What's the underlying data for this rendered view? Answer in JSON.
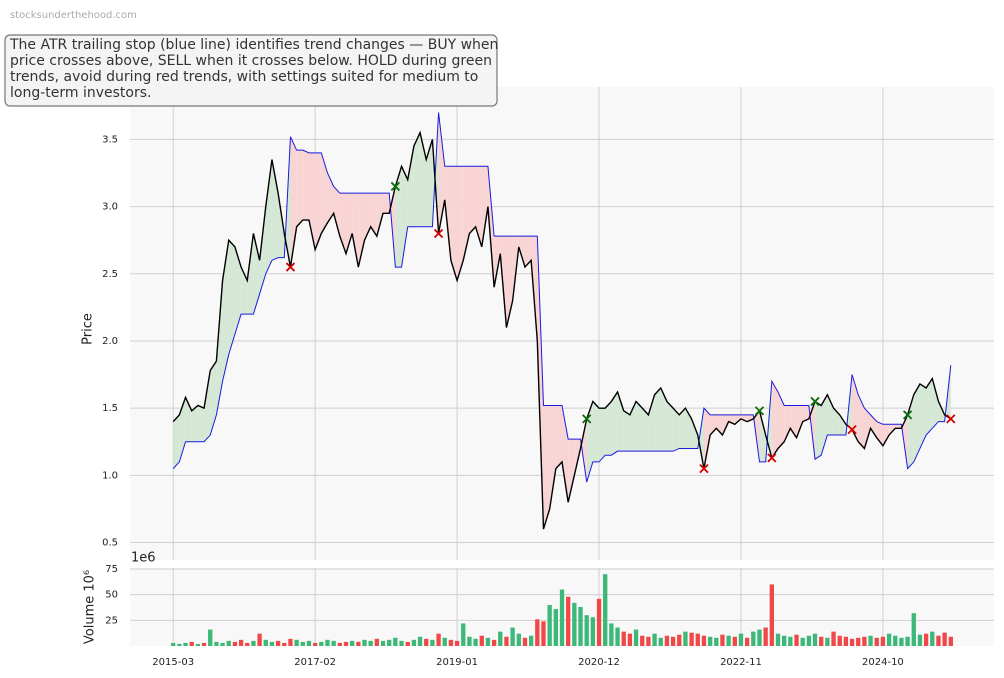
{
  "watermark": "stocksunderthehood.com",
  "annotation_lines": [
    "The ATR trailing stop (blue line) identifies trend changes — BUY when",
    "price crosses above, SELL when it crosses below. HOLD during green",
    "trends, avoid during red trends, with settings suited for medium to",
    "long-term investors."
  ],
  "chart_data": [
    {
      "type": "line",
      "ylabel": "Price",
      "x": [
        "2015-03",
        "2015-04",
        "2015-05",
        "2015-06",
        "2015-07",
        "2015-08",
        "2015-09",
        "2015-10",
        "2015-11",
        "2015-12",
        "2016-01",
        "2016-02",
        "2016-03",
        "2016-04",
        "2016-05",
        "2016-06",
        "2016-07",
        "2016-08",
        "2016-09",
        "2016-10",
        "2016-11",
        "2016-12",
        "2017-01",
        "2017-02",
        "2017-03",
        "2017-04",
        "2017-05",
        "2017-06",
        "2017-07",
        "2017-08",
        "2017-09",
        "2017-10",
        "2017-11",
        "2017-12",
        "2018-01",
        "2018-02",
        "2018-03",
        "2018-04",
        "2018-05",
        "2018-06",
        "2018-07",
        "2018-08",
        "2018-09",
        "2018-10",
        "2018-11",
        "2018-12",
        "2019-01",
        "2019-02",
        "2019-03",
        "2019-04",
        "2019-05",
        "2019-06",
        "2019-07",
        "2019-08",
        "2019-09",
        "2019-10",
        "2019-11",
        "2019-12",
        "2020-01",
        "2020-02",
        "2020-03",
        "2020-04",
        "2020-05",
        "2020-06",
        "2020-07",
        "2020-08",
        "2020-09",
        "2020-10",
        "2020-11",
        "2020-12",
        "2021-01",
        "2021-02",
        "2021-03",
        "2021-04",
        "2021-05",
        "2021-06",
        "2021-07",
        "2021-08",
        "2021-09",
        "2021-10",
        "2021-11",
        "2021-12",
        "2022-01",
        "2022-02",
        "2022-03",
        "2022-04",
        "2022-05",
        "2022-06",
        "2022-07",
        "2022-08",
        "2022-09",
        "2022-10",
        "2022-11",
        "2022-12",
        "2023-01",
        "2023-02",
        "2023-03",
        "2023-04",
        "2023-05",
        "2023-06",
        "2023-07",
        "2023-08",
        "2023-09",
        "2023-10",
        "2023-11",
        "2023-12",
        "2024-01",
        "2024-02",
        "2024-03",
        "2024-04",
        "2024-05",
        "2024-06",
        "2024-07",
        "2024-08",
        "2024-09",
        "2024-10",
        "2024-11",
        "2024-12",
        "2025-01",
        "2025-02",
        "2025-03",
        "2025-04",
        "2025-05",
        "2025-06",
        "2025-07",
        "2025-08",
        "2025-09"
      ],
      "series": [
        {
          "color": "#000000",
          "values": [
            1.4,
            1.45,
            1.58,
            1.48,
            1.52,
            1.5,
            1.78,
            1.85,
            2.45,
            2.75,
            2.7,
            2.55,
            2.45,
            2.8,
            2.6,
            3.0,
            3.35,
            3.1,
            2.8,
            2.55,
            2.85,
            2.9,
            2.9,
            2.68,
            2.8,
            2.88,
            2.95,
            2.78,
            2.65,
            2.8,
            2.55,
            2.75,
            2.85,
            2.78,
            2.95,
            2.95,
            3.15,
            3.3,
            3.2,
            3.45,
            3.55,
            3.35,
            3.5,
            2.8,
            3.05,
            2.6,
            2.45,
            2.6,
            2.8,
            2.85,
            2.7,
            3.0,
            2.4,
            2.65,
            2.1,
            2.3,
            2.7,
            2.55,
            2.6,
            2.0,
            0.6,
            0.75,
            1.05,
            1.1,
            0.8,
            1.0,
            1.2,
            1.42,
            1.55,
            1.5,
            1.5,
            1.55,
            1.62,
            1.48,
            1.45,
            1.55,
            1.5,
            1.45,
            1.6,
            1.65,
            1.55,
            1.5,
            1.45,
            1.5,
            1.42,
            1.3,
            1.05,
            1.3,
            1.35,
            1.3,
            1.4,
            1.38,
            1.42,
            1.4,
            1.42,
            1.48,
            1.3,
            1.13,
            1.2,
            1.25,
            1.35,
            1.28,
            1.4,
            1.42,
            1.55,
            1.52,
            1.6,
            1.5,
            1.45,
            1.38,
            1.34,
            1.25,
            1.2,
            1.35,
            1.28,
            1.22,
            1.3,
            1.35,
            1.35,
            1.45,
            1.6,
            1.68,
            1.65,
            1.72,
            1.55,
            1.45,
            1.42
          ]
        },
        {
          "color": "#1a1ae0",
          "values": [
            1.05,
            1.1,
            1.25,
            1.25,
            1.25,
            1.25,
            1.3,
            1.45,
            1.7,
            1.9,
            2.05,
            2.2,
            2.2,
            2.2,
            2.35,
            2.5,
            2.6,
            2.62,
            2.62,
            3.52,
            3.42,
            3.42,
            3.4,
            3.4,
            3.4,
            3.25,
            3.15,
            3.1,
            3.1,
            3.1,
            3.1,
            3.1,
            3.1,
            3.1,
            3.1,
            3.1,
            2.55,
            2.55,
            2.85,
            2.85,
            2.85,
            2.85,
            2.85,
            3.7,
            3.3,
            3.3,
            3.3,
            3.3,
            3.3,
            3.3,
            3.3,
            3.3,
            2.78,
            2.78,
            2.78,
            2.78,
            2.78,
            2.78,
            2.78,
            2.78,
            1.52,
            1.52,
            1.52,
            1.52,
            1.27,
            1.27,
            1.27,
            0.95,
            1.1,
            1.1,
            1.15,
            1.15,
            1.18,
            1.18,
            1.18,
            1.18,
            1.18,
            1.18,
            1.18,
            1.18,
            1.18,
            1.18,
            1.2,
            1.2,
            1.2,
            1.2,
            1.5,
            1.45,
            1.45,
            1.45,
            1.45,
            1.45,
            1.45,
            1.45,
            1.45,
            1.1,
            1.1,
            1.7,
            1.62,
            1.52,
            1.52,
            1.52,
            1.52,
            1.52,
            1.12,
            1.15,
            1.3,
            1.3,
            1.3,
            1.3,
            1.75,
            1.6,
            1.5,
            1.45,
            1.4,
            1.38,
            1.38,
            1.38,
            1.38,
            1.05,
            1.1,
            1.2,
            1.3,
            1.35,
            1.4,
            1.4,
            1.82
          ]
        }
      ],
      "fill_up_color": "#d5e8d5",
      "fill_down_color": "#f9d4d4",
      "signals": [
        {
          "color": "#0a6e0a",
          "x": [
            "2018-03",
            "2020-10",
            "2023-02",
            "2023-11",
            "2025-02"
          ],
          "values": [
            3.15,
            1.42,
            1.48,
            1.55,
            1.45
          ]
        },
        {
          "color": "#d40000",
          "x": [
            "2016-10",
            "2018-10",
            "2022-05",
            "2023-04",
            "2024-05",
            "2025-09"
          ],
          "values": [
            2.55,
            2.8,
            1.05,
            1.13,
            1.34,
            1.42
          ]
        }
      ],
      "xlim": [
        "2014-08",
        "2026-04"
      ],
      "ylim": [
        0.37,
        3.89
      ],
      "yticks": [
        0.5,
        {
          "value": 1,
          "label": "1.0"
        },
        1.5,
        {
          "value": 2,
          "label": "2.0"
        },
        2.5,
        {
          "value": 3,
          "label": "3.0"
        },
        3.5
      ],
      "grid": true
    },
    {
      "type": "bar",
      "ylabel": "Volume 10⁶",
      "offset_label": "1e6",
      "up_color": "#3cb878",
      "down_color": "#f04848",
      "values": [
        3,
        2,
        3,
        4,
        2,
        3,
        16,
        4,
        3,
        5,
        4,
        6,
        3,
        5,
        12,
        6,
        4,
        5,
        3,
        7,
        6,
        4,
        5,
        3,
        4,
        6,
        5,
        3,
        4,
        5,
        4,
        6,
        5,
        7,
        5,
        6,
        8,
        5,
        4,
        6,
        9,
        7,
        6,
        12,
        8,
        6,
        5,
        22,
        9,
        7,
        10,
        8,
        6,
        14,
        9,
        18,
        12,
        8,
        10,
        26,
        24,
        40,
        36,
        55,
        48,
        42,
        38,
        30,
        28,
        46,
        70,
        22,
        18,
        14,
        12,
        16,
        10,
        9,
        12,
        8,
        10,
        9,
        11,
        14,
        13,
        12,
        10,
        9,
        8,
        11,
        10,
        9,
        12,
        8,
        14,
        16,
        18,
        60,
        12,
        10,
        9,
        11,
        8,
        10,
        12,
        9,
        8,
        14,
        10,
        9,
        7,
        8,
        9,
        10,
        8,
        9,
        12,
        10,
        8,
        9,
        32,
        11,
        12,
        14,
        10,
        13,
        9
      ],
      "ylim": [
        0,
        76
      ],
      "yticks": [
        25,
        50,
        75
      ],
      "xticks": [
        "2015-03",
        "2017-02",
        "2019-01",
        "2020-12",
        "2022-11",
        "2024-10"
      ],
      "grid": true
    }
  ]
}
